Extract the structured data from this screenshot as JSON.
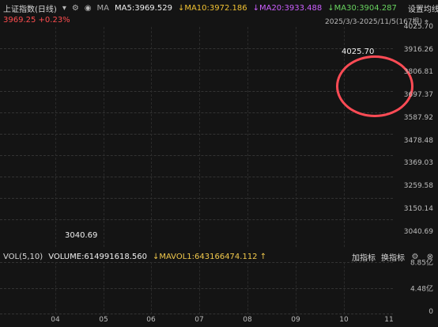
{
  "header": {
    "title": "上证指数(日线)",
    "ma_label": "MA",
    "ma5": "MA5:3969.529",
    "ma10": "↓MA10:3972.186",
    "ma20": "↓MA20:3933.488",
    "ma30": "↓MA30:3904.287",
    "settings_label": "设置均线",
    "price_change": "3969.25 +0.23%",
    "date_range": "2025/3/3-2025/11/5(167根)"
  },
  "price_axis": {
    "labels": [
      "4025.70",
      "3916.26",
      "3806.81",
      "3697.37",
      "3587.92",
      "3478.48",
      "3369.03",
      "3259.58",
      "3150.14",
      "3040.69"
    ]
  },
  "annotations": {
    "high": "4025.70",
    "low": "3040.69"
  },
  "volume_header": {
    "vol_label": "VOL(5,10)",
    "volume": "VOLUME:614991618.560",
    "mavol": "↓MAVOL1:643166474.112 ↑",
    "indicator_add": "加指标",
    "indicator_switch": "换指标"
  },
  "volume_axis": {
    "labels": [
      "8.85亿",
      "4.48亿",
      "0"
    ]
  },
  "x_axis": {
    "labels": [
      "04",
      "05",
      "06",
      "07",
      "08",
      "09",
      "10",
      "11"
    ]
  }
}
